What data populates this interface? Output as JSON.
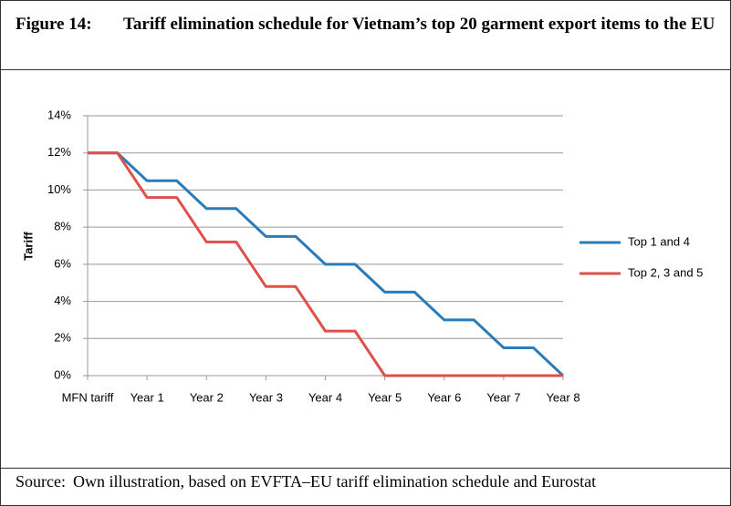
{
  "chart_data": {
    "type": "line",
    "figure_label": "Figure 14:",
    "title": "Tariff elimination schedule for Vietnam’s top 20 garment export items to the EU",
    "y_label": "Tariff",
    "source_label": "Source:",
    "source": "Own illustration, based on EVFTA–EU tariff elimination schedule and Eurostat",
    "x": [
      0,
      0.5,
      1,
      1.5,
      2,
      2.5,
      3,
      3.5,
      4,
      4.5,
      5,
      5.5,
      6,
      6.5,
      7,
      7.5,
      8
    ],
    "xlim": [
      0,
      8
    ],
    "xticks": [
      {
        "value": 0,
        "label": "MFN tariff"
      },
      {
        "value": 1,
        "label": "Year 1"
      },
      {
        "value": 2,
        "label": "Year 2"
      },
      {
        "value": 3,
        "label": "Year 3"
      },
      {
        "value": 4,
        "label": "Year 4"
      },
      {
        "value": 5,
        "label": "Year 5"
      },
      {
        "value": 6,
        "label": "Year 6"
      },
      {
        "value": 7,
        "label": "Year 7"
      },
      {
        "value": 8,
        "label": "Year 8"
      }
    ],
    "ylim": [
      0,
      14
    ],
    "yticks": [
      {
        "value": 0,
        "label": "0%"
      },
      {
        "value": 2,
        "label": "2%"
      },
      {
        "value": 4,
        "label": "4%"
      },
      {
        "value": 6,
        "label": "6%"
      },
      {
        "value": 8,
        "label": "8%"
      },
      {
        "value": 10,
        "label": "10%"
      },
      {
        "value": 12,
        "label": "12%"
      },
      {
        "value": 14,
        "label": "14%"
      }
    ],
    "grid": true,
    "legend": "right",
    "series": [
      {
        "name": "Top 1 and 4",
        "color": "#2a7bb9",
        "values": [
          12,
          12,
          10.5,
          10.5,
          9,
          9,
          7.5,
          7.5,
          6,
          6,
          4.5,
          4.5,
          3,
          3,
          1.5,
          1.5,
          0
        ]
      },
      {
        "name": "Top 2, 3 and 5",
        "color": "#e0504a",
        "values": [
          12,
          12,
          9.6,
          9.6,
          7.2,
          7.2,
          4.8,
          4.8,
          2.4,
          2.4,
          0,
          0,
          0,
          0,
          0,
          0,
          0
        ]
      }
    ]
  }
}
